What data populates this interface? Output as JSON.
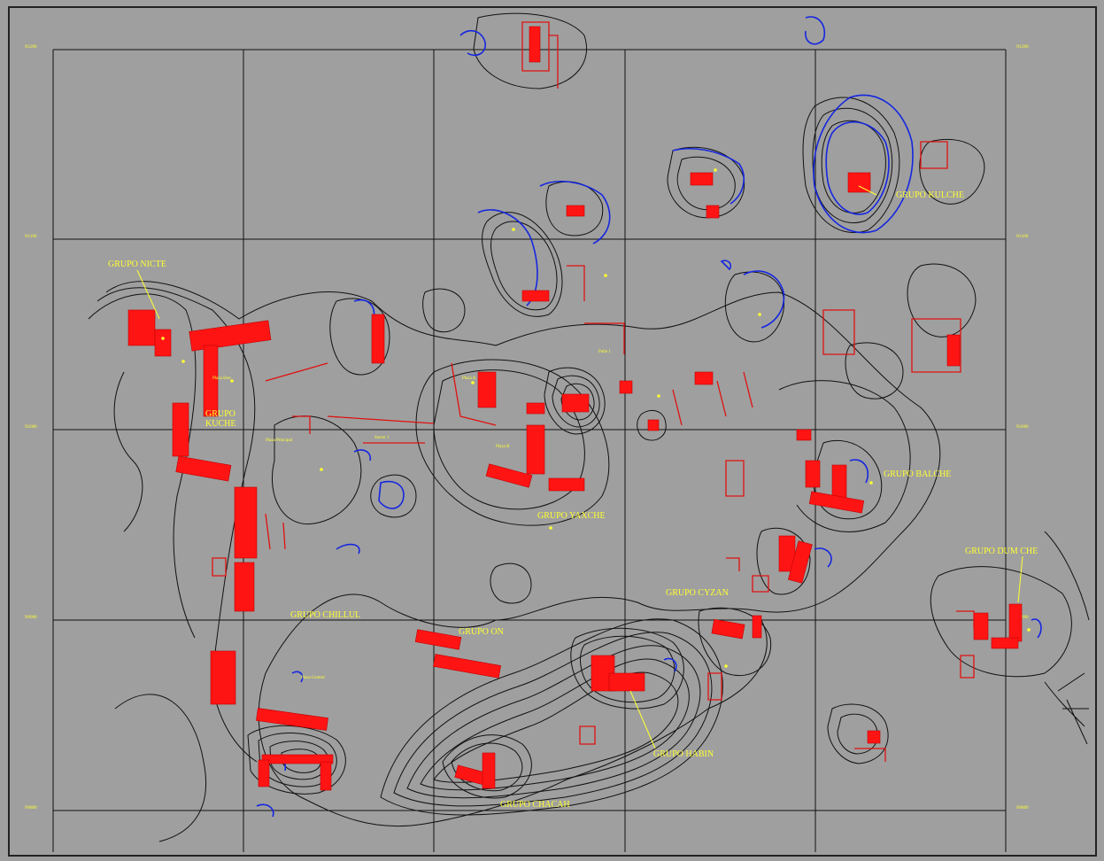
{
  "map": {
    "group_labels": [
      {
        "id": "nicte",
        "text": "GRUPO NICTE"
      },
      {
        "id": "kuche",
        "text": "GRUPO\nKUCHE"
      },
      {
        "id": "kulche",
        "text": "GRUPO KULCHE"
      },
      {
        "id": "yaxche",
        "text": "GRUPO YAXCHE"
      },
      {
        "id": "balche",
        "text": "GRUPO BALCHE"
      },
      {
        "id": "dumche",
        "text": "GRUPO DUM CHE"
      },
      {
        "id": "cyzan",
        "text": "GRUPO CYZAN"
      },
      {
        "id": "chilel",
        "text": "GRUPO CHILLUL"
      },
      {
        "id": "on",
        "text": "GRUPO ON"
      },
      {
        "id": "habin",
        "text": "GRUPO HABIN"
      },
      {
        "id": "chacah",
        "text": "GRUPO CHACAH"
      }
    ],
    "grid_labels": {
      "left": [
        "N1200",
        "N1100",
        "N1000",
        "N0900",
        "N0800"
      ],
      "right": [
        "N1200",
        "N1100",
        "N1000",
        "N0900",
        "N0800"
      ]
    },
    "small_labels": [
      "Plaza A",
      "Plaza B",
      "Plaza Principal",
      "Patio 1",
      "Sector 1",
      "Plaza Central",
      "Plaza Este"
    ],
    "colors": {
      "background": "#9f9f9f",
      "contour": "#111111",
      "blue_contour": "#1526e0",
      "building": "#ff1414",
      "label": "#ffff33"
    }
  }
}
